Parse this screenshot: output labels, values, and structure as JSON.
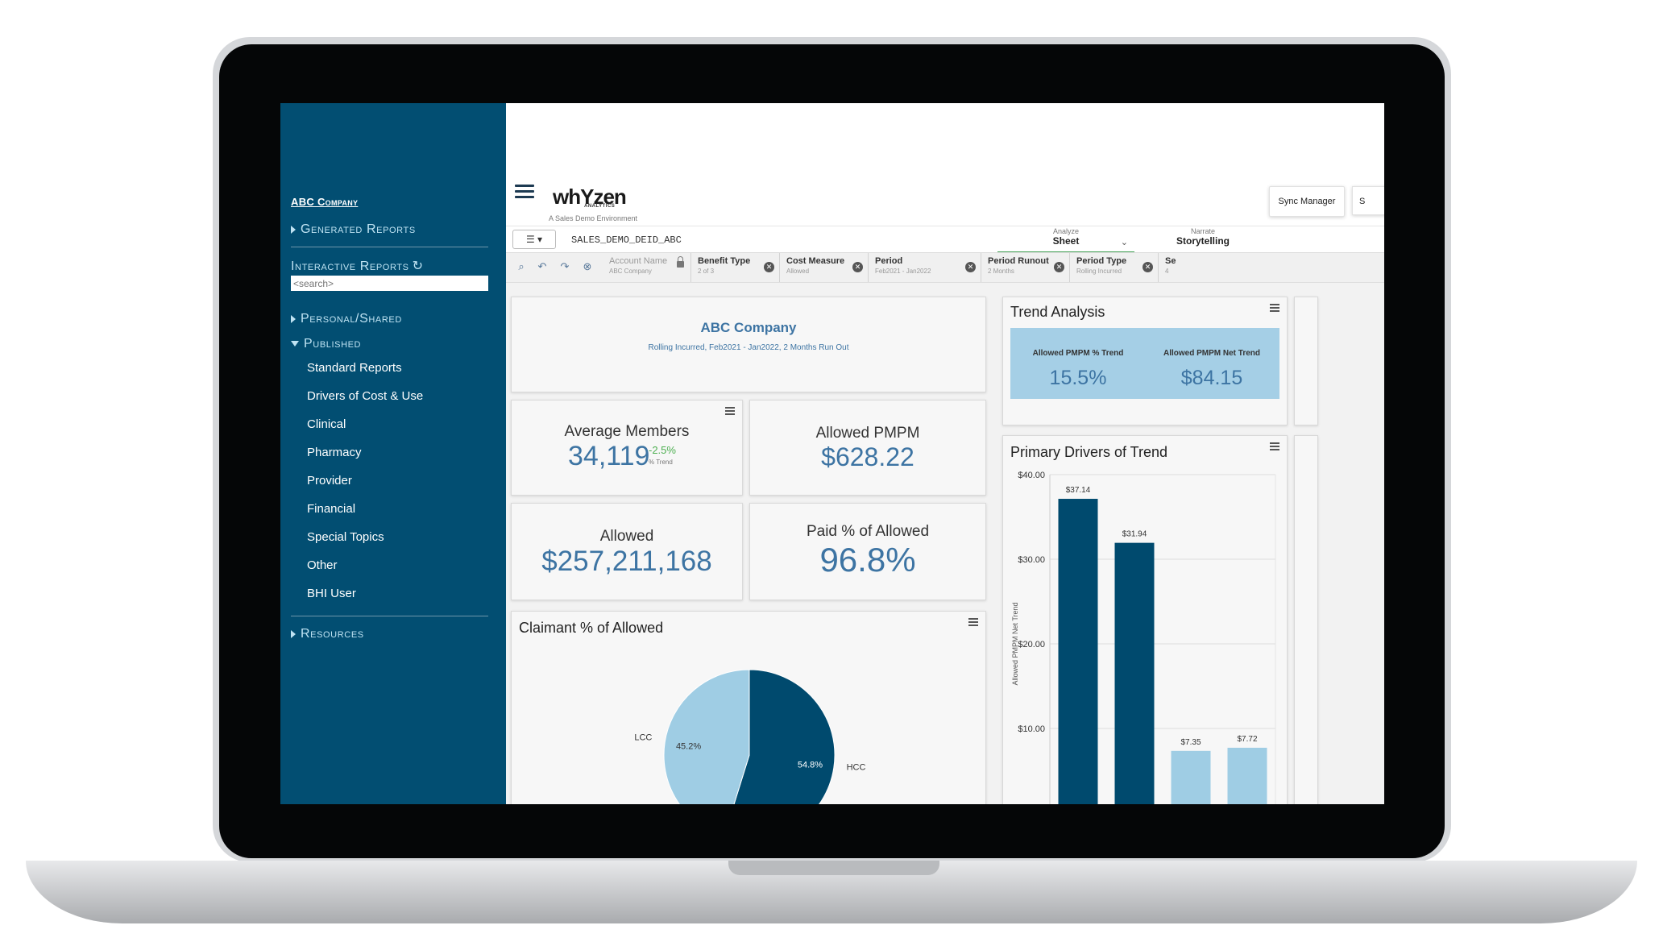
{
  "sidebar": {
    "company": "ABC Company",
    "generated_reports": "Generated Reports",
    "interactive_reports": "Interactive Reports",
    "search_placeholder": "<search>",
    "personal_shared": "Personal/Shared",
    "published": "Published",
    "items": [
      "Standard Reports",
      "Drivers of Cost & Use",
      "Clinical",
      "Pharmacy",
      "Provider",
      "Financial",
      "Special Topics",
      "Other",
      "BHI User"
    ],
    "resources": "Resources"
  },
  "header": {
    "logo": "whYzen",
    "logo_sub": "ANALYTICS",
    "environment": "A Sales Demo Environment",
    "sync_manager": "Sync Manager",
    "extra_button": "S"
  },
  "sheetbar": {
    "app_name": "SALES_DEMO_DEID_ABC",
    "analyze_label": "Analyze",
    "analyze_value": "Sheet",
    "narrate_label": "Narrate",
    "narrate_value": "Storytelling"
  },
  "filters": [
    {
      "title": "Account Name",
      "sub": "ABC Company"
    },
    {
      "title": "Benefit Type",
      "sub": "2 of 3"
    },
    {
      "title": "Cost Measure",
      "sub": "Allowed"
    },
    {
      "title": "Period",
      "sub": "Feb2021 - Jan2022"
    },
    {
      "title": "Period Runout",
      "sub": "2 Months"
    },
    {
      "title": "Period Type",
      "sub": "Rolling Incurred"
    },
    {
      "title": "Se",
      "sub": "4"
    }
  ],
  "summary": {
    "title": "ABC Company",
    "subtitle": "Rolling Incurred, Feb2021 - Jan2022, 2 Months Run Out"
  },
  "kpis": {
    "avg_members_label": "Average Members",
    "avg_members_value": "34,119",
    "avg_members_trend": "-2.5%",
    "avg_members_trend_label": "% Trend",
    "allowed_pmpm_label": "Allowed PMPM",
    "allowed_pmpm_value": "$628.22",
    "allowed_label": "Allowed",
    "allowed_value": "$257,211,168",
    "paid_pct_label": "Paid % of Allowed",
    "paid_pct_value": "96.8%"
  },
  "trend_analysis": {
    "title": "Trend Analysis",
    "pct_label": "Allowed PMPM % Trend",
    "pct_value": "15.5%",
    "net_label": "Allowed PMPM Net Trend",
    "net_value": "$84.15"
  },
  "colors": {
    "sidebar": "#024e72",
    "accent_blue": "#3d74a3",
    "dark_bar": "#004a6e",
    "light_bar": "#9fcde4",
    "trend_green": "#47a55a"
  },
  "chart_data": [
    {
      "type": "pie",
      "title": "Claimant % of Allowed",
      "slices": [
        {
          "label": "HCC",
          "value": 54.8,
          "display": "54.8%"
        },
        {
          "label": "LCC",
          "value": 45.2,
          "display": "45.2%"
        }
      ]
    },
    {
      "type": "bar",
      "title": "Primary Drivers of Trend",
      "ylabel": "Allowed PMPM Net Trend",
      "y_ticks": [
        "$40.00",
        "$30.00",
        "$20.00",
        "$10.00"
      ],
      "ylim": [
        0,
        40
      ],
      "values": [
        37.14,
        31.94,
        7.35,
        7.72
      ],
      "value_labels": [
        "$37.14",
        "$31.94",
        "$7.35",
        "$7.72"
      ],
      "bar_colors": [
        "dark",
        "dark",
        "light",
        "light"
      ]
    }
  ]
}
